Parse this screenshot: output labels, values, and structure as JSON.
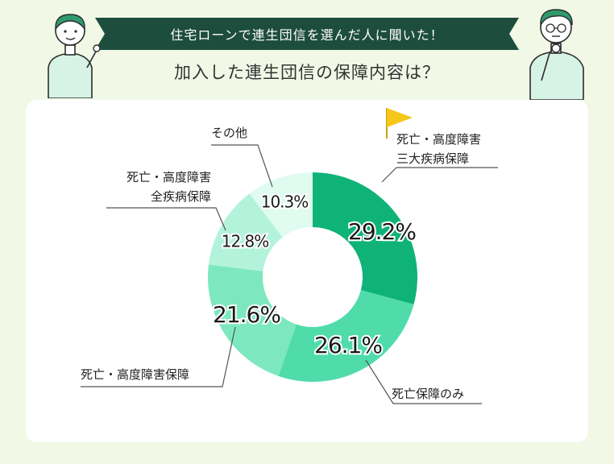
{
  "header": {
    "banner_text": "住宅ローンで連生団信を選んだ人に聞いた！",
    "subtitle": "加入した連生団信の保障内容は？"
  },
  "colors": {
    "background": "#f1f9e6",
    "banner": "#1d4d3d",
    "card": "#ffffff",
    "flag": "#f5c71a",
    "leader_line": "#555555"
  },
  "chart_data": {
    "type": "pie",
    "donut": true,
    "value_suffix": "%",
    "slices": [
      {
        "label_lines": [
          "死亡・高度障害",
          "三大疾病保障"
        ],
        "value": 29.2,
        "color": "#0fb377",
        "highlight": true
      },
      {
        "label_lines": [
          "死亡保障のみ"
        ],
        "value": 26.1,
        "color": "#4fdcaa",
        "highlight": false
      },
      {
        "label_lines": [
          "死亡・高度障害保障"
        ],
        "value": 21.6,
        "color": "#7de8c0",
        "highlight": false
      },
      {
        "label_lines": [
          "死亡・高度障害",
          "全疾病保障"
        ],
        "value": 12.8,
        "color": "#b3f3db",
        "highlight": false
      },
      {
        "label_lines": [
          "その他"
        ],
        "value": 10.3,
        "color": "#e0fbf0",
        "highlight": false
      }
    ]
  }
}
